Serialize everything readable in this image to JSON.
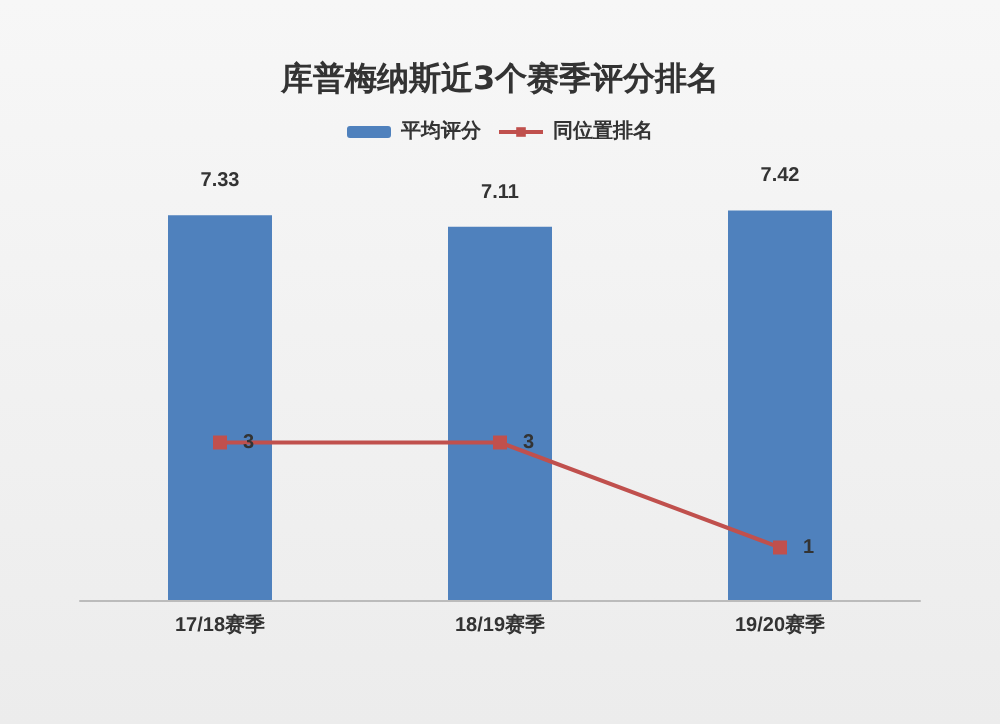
{
  "chart_data": {
    "type": "bar",
    "title": "库普梅纳斯近3个赛季评分排名",
    "categories": [
      "17/18赛季",
      "18/19赛季",
      "19/20赛季"
    ],
    "series": [
      {
        "name": "平均评分",
        "color": "#4f81bd",
        "values": [
          7.33,
          7.11,
          7.42
        ]
      },
      {
        "name": "同位置排名",
        "type": "line",
        "color": "#c0504d",
        "values": [
          3,
          3,
          1
        ],
        "marker": "square"
      }
    ],
    "data_labels": true,
    "legend": "top"
  }
}
